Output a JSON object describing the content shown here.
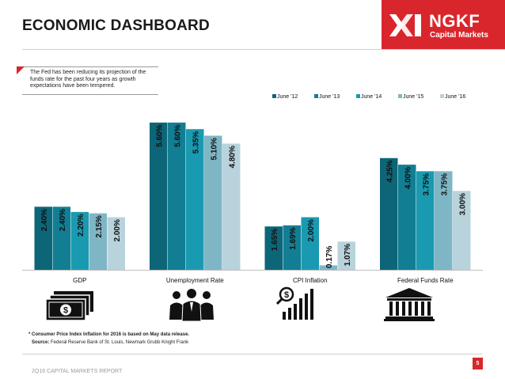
{
  "header": {
    "title": "ECONOMIC DASHBOARD"
  },
  "logo": {
    "name": "NGKF",
    "subtitle": "Capital Markets",
    "brand_color": "#d9262c"
  },
  "note": {
    "text": "The Fed has been reducing its projection of the funds rate for the past four years as growth expectations have been tempered."
  },
  "chart_data": {
    "type": "bar",
    "title": "",
    "xlabel": "",
    "ylabel": "",
    "ylim": [
      0,
      6.2
    ],
    "grid": false,
    "legend": "top-right",
    "categories": [
      "GDP",
      "Unemployment Rate",
      "CPI Inflation",
      "Federal Funds Rate"
    ],
    "series": [
      {
        "name": "June '12",
        "color": "#0d6677",
        "values": [
          2.4,
          5.6,
          1.65,
          4.25
        ],
        "labels": [
          "2.40%",
          "5.60%",
          "1.65%",
          "4.25%"
        ]
      },
      {
        "name": "June '13",
        "color": "#127e93",
        "values": [
          2.4,
          5.6,
          1.69,
          4.0
        ],
        "labels": [
          "2.40%",
          "5.60%",
          "1.69%",
          "4.00%"
        ]
      },
      {
        "name": "June '14",
        "color": "#1a9ab1",
        "values": [
          2.2,
          5.35,
          2.0,
          3.75
        ],
        "labels": [
          "2.20%",
          "5.35%",
          "2.00%",
          "3.75%"
        ]
      },
      {
        "name": "June '15",
        "color": "#7fb6c6",
        "values": [
          2.15,
          5.1,
          0.17,
          3.75
        ],
        "labels": [
          "2.15%",
          "5.10%",
          "0.17%",
          "3.75%"
        ]
      },
      {
        "name": "June '16",
        "color": "#b9d3dd",
        "values": [
          2.0,
          4.8,
          1.07,
          3.0
        ],
        "labels": [
          "2.00%",
          "4.80%",
          "1.07%",
          "3.00%"
        ]
      }
    ]
  },
  "footnote": "* Consumer Price Index Inflation for 2016 is based on May data release.",
  "source": {
    "label": "Source:",
    "text": "Federal Reserve Bank of St. Louis, Newmark Grubb Knight Frank"
  },
  "footer": {
    "report": "2Q16 CAPITAL MARKETS REPORT",
    "page": "5"
  }
}
